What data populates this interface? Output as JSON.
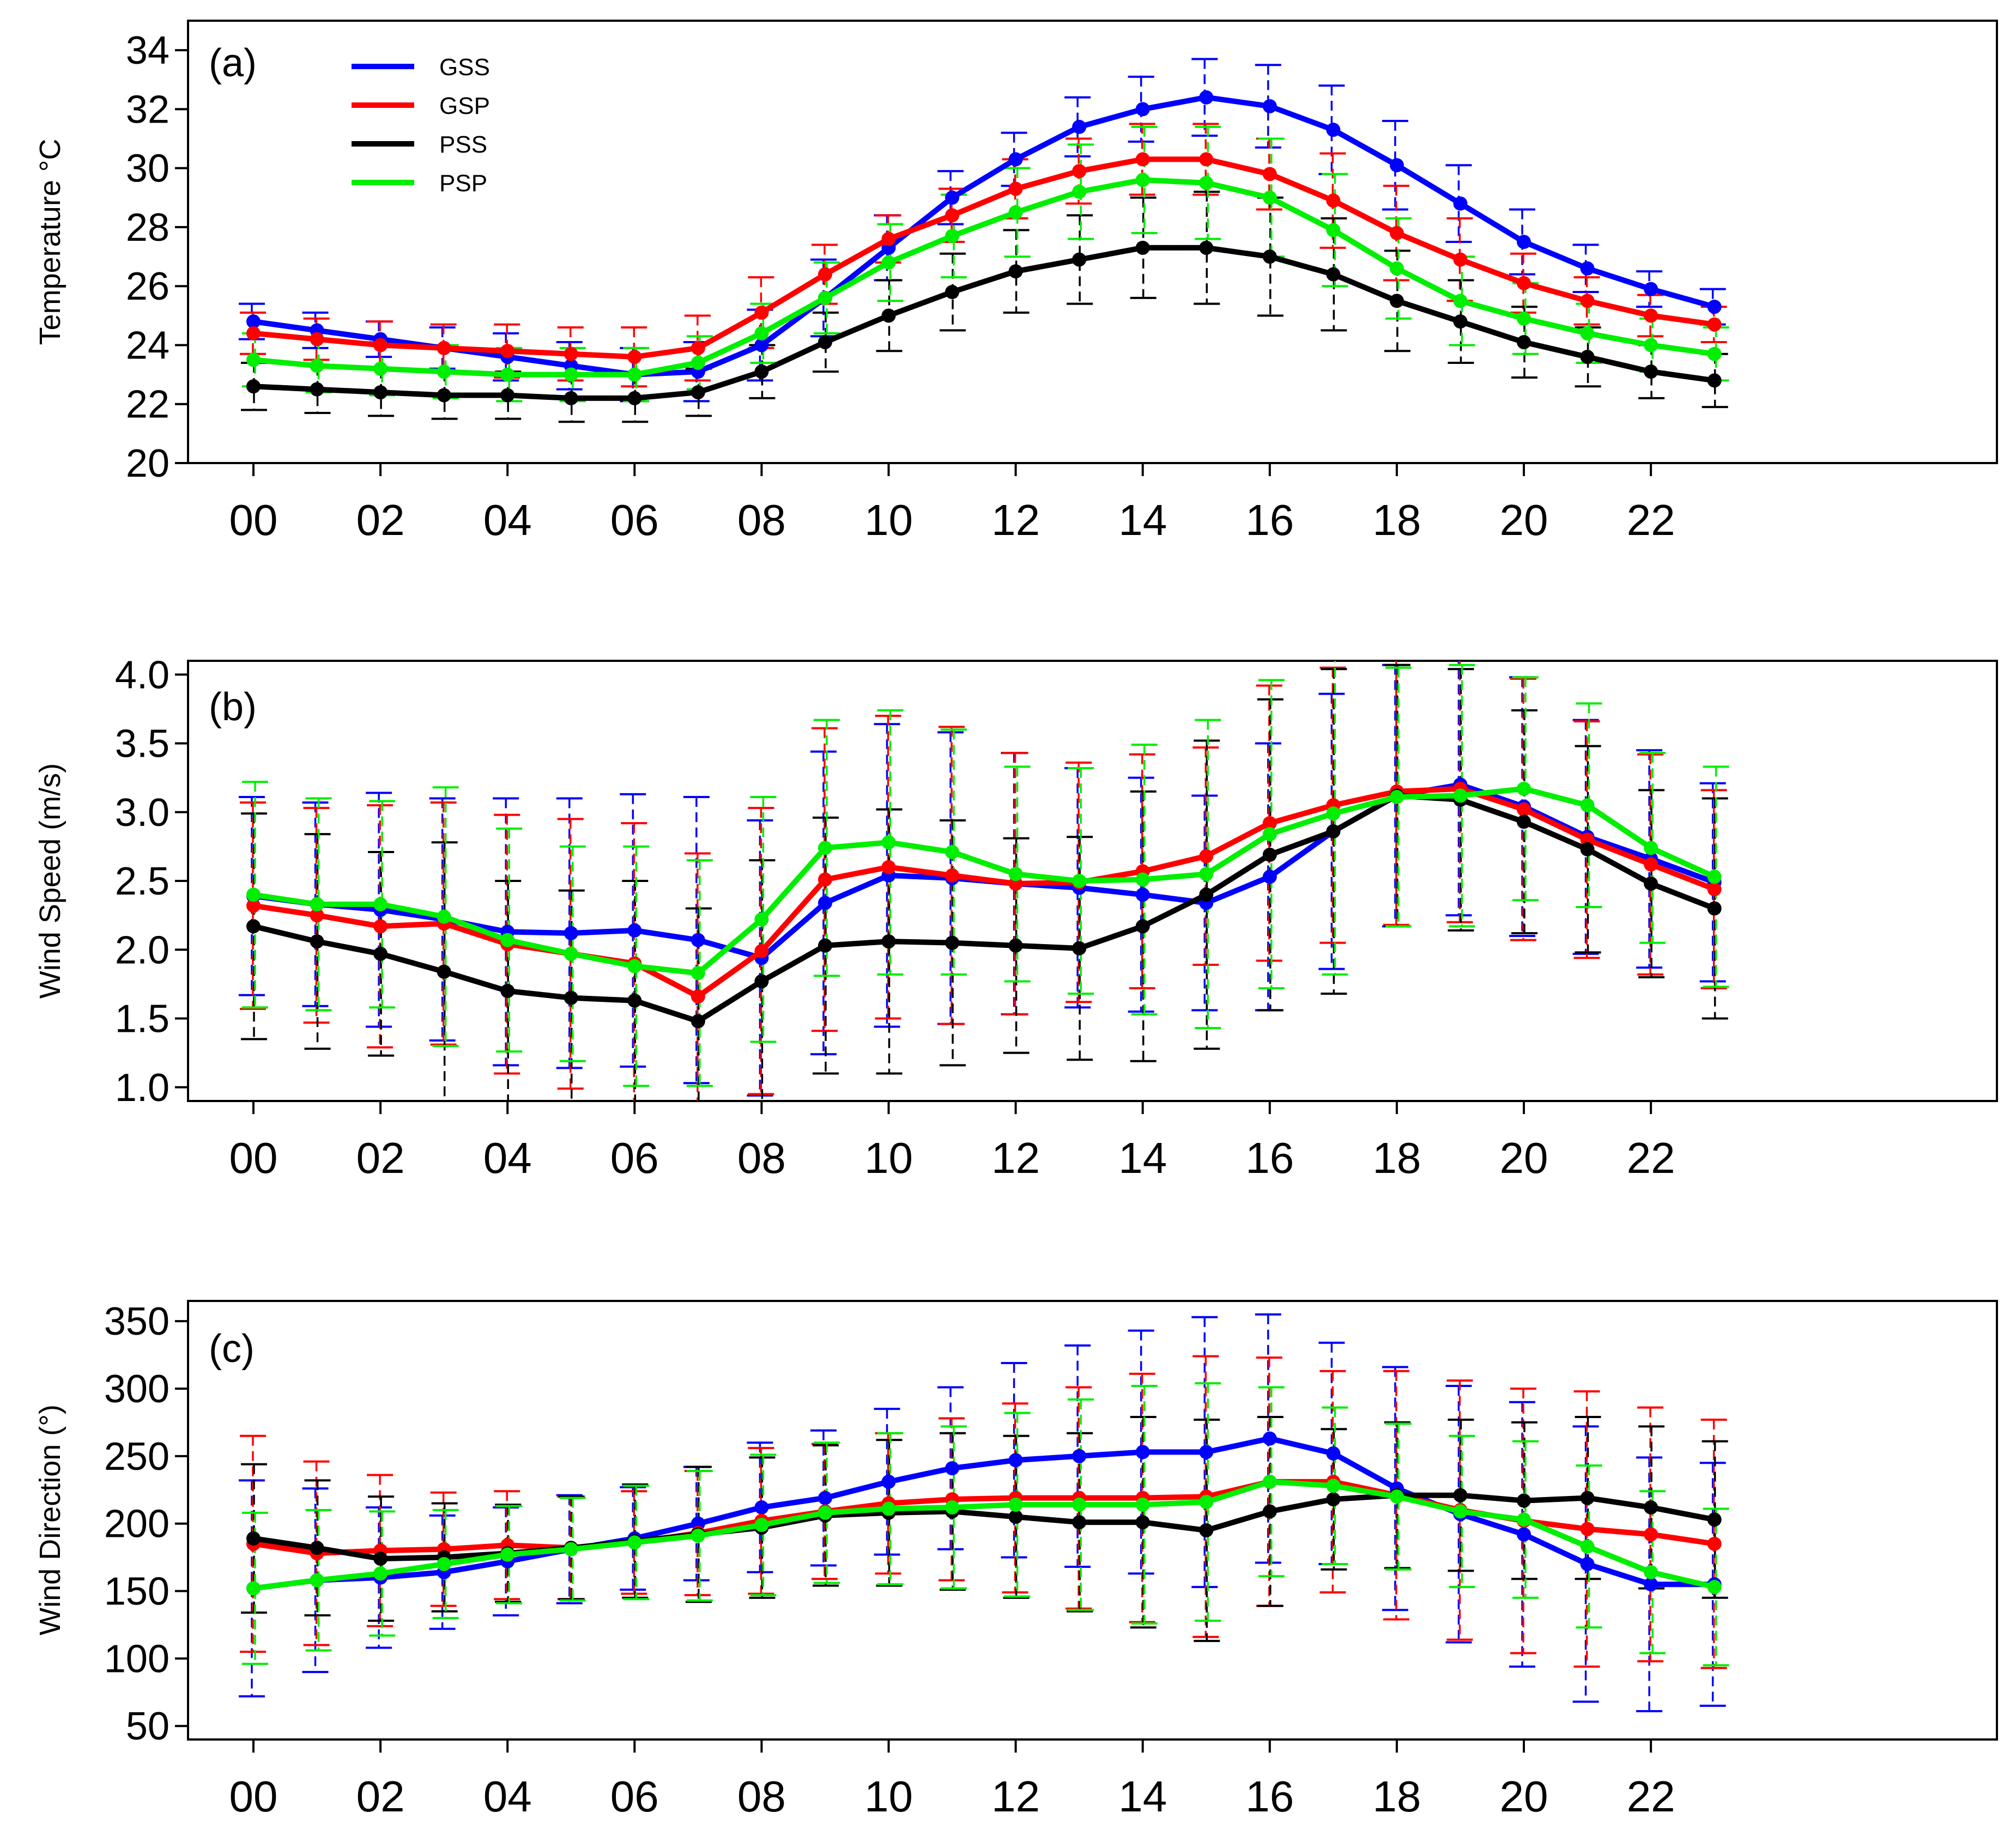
{
  "colors": {
    "GSS": "#0000ff",
    "GSP": "#ff0000",
    "PSS": "#000000",
    "PSP": "#00ee00"
  },
  "legend": [
    {
      "label": "GSS",
      "color": "#0000ff"
    },
    {
      "label": "GSP",
      "color": "#ff0000"
    },
    {
      "label": "PSS",
      "color": "#000000"
    },
    {
      "label": "PSP",
      "color": "#00ee00"
    }
  ],
  "chart_data": [
    {
      "type": "line",
      "panel_label": "(a)",
      "title": "",
      "xlabel": "",
      "ylabel": "Temperature °C",
      "ylim": [
        20,
        35
      ],
      "yticks": [
        20,
        22,
        24,
        26,
        28,
        30,
        32,
        34
      ],
      "ytick_labels": [
        "20",
        "22",
        "24",
        "26",
        "28",
        "30",
        "32",
        "34"
      ],
      "x": [
        0,
        1,
        2,
        3,
        4,
        5,
        6,
        7,
        8,
        9,
        10,
        11,
        12,
        13,
        14,
        15,
        16,
        17,
        18,
        19,
        20,
        21,
        22,
        23
      ],
      "xticks": [
        0,
        2,
        4,
        6,
        8,
        10,
        12,
        14,
        16,
        18,
        20,
        22
      ],
      "xtick_labels": [
        "00",
        "02",
        "04",
        "06",
        "08",
        "10",
        "12",
        "14",
        "16",
        "18",
        "20",
        "22"
      ],
      "legend_position": "top-left",
      "series": [
        {
          "name": "GSS",
          "values": [
            24.8,
            24.5,
            24.2,
            23.9,
            23.6,
            23.3,
            23.0,
            23.1,
            24.0,
            25.6,
            27.3,
            29.0,
            30.3,
            31.4,
            32.0,
            32.4,
            32.1,
            31.3,
            30.1,
            28.8,
            27.5,
            26.6,
            25.9,
            25.3
          ],
          "err": [
            0.6,
            0.6,
            0.6,
            0.7,
            0.8,
            0.8,
            0.9,
            1.0,
            1.2,
            1.3,
            1.1,
            0.9,
            0.9,
            1.0,
            1.1,
            1.3,
            1.4,
            1.5,
            1.5,
            1.3,
            1.1,
            0.8,
            0.6,
            0.6
          ]
        },
        {
          "name": "GSP",
          "values": [
            24.4,
            24.2,
            24.0,
            23.9,
            23.8,
            23.7,
            23.6,
            23.9,
            25.1,
            26.4,
            27.6,
            28.4,
            29.3,
            29.9,
            30.3,
            30.3,
            29.8,
            28.9,
            27.8,
            26.9,
            26.1,
            25.5,
            25.0,
            24.7
          ],
          "err": [
            0.7,
            0.7,
            0.8,
            0.8,
            0.9,
            0.9,
            1.0,
            1.1,
            1.2,
            1.0,
            0.8,
            0.9,
            1.0,
            1.1,
            1.2,
            1.2,
            1.2,
            1.6,
            1.6,
            1.4,
            1.0,
            0.8,
            0.7,
            0.6
          ]
        },
        {
          "name": "PSS",
          "values": [
            22.6,
            22.5,
            22.4,
            22.3,
            22.3,
            22.2,
            22.2,
            22.4,
            23.1,
            24.1,
            25.0,
            25.8,
            26.5,
            26.9,
            27.3,
            27.3,
            27.0,
            26.4,
            25.5,
            24.8,
            24.1,
            23.6,
            23.1,
            22.8
          ],
          "err": [
            0.8,
            0.8,
            0.8,
            0.8,
            0.8,
            0.8,
            0.8,
            0.8,
            0.9,
            1.0,
            1.2,
            1.3,
            1.4,
            1.5,
            1.7,
            1.9,
            2.0,
            1.9,
            1.7,
            1.4,
            1.2,
            1.0,
            0.9,
            0.9
          ]
        },
        {
          "name": "PSP",
          "values": [
            23.5,
            23.3,
            23.2,
            23.1,
            23.0,
            23.0,
            23.0,
            23.4,
            24.4,
            25.6,
            26.8,
            27.7,
            28.5,
            29.2,
            29.6,
            29.5,
            29.0,
            27.9,
            26.6,
            25.5,
            24.9,
            24.4,
            24.0,
            23.7
          ],
          "err": [
            0.9,
            0.9,
            0.9,
            0.9,
            0.9,
            0.9,
            0.9,
            0.9,
            1.0,
            1.2,
            1.3,
            1.4,
            1.5,
            1.6,
            1.8,
            1.9,
            2.0,
            1.9,
            1.7,
            1.5,
            1.2,
            1.0,
            0.9,
            0.9
          ]
        }
      ]
    },
    {
      "type": "line",
      "panel_label": "(b)",
      "title": "",
      "xlabel": "",
      "ylabel": "Wind Speed (m/s)",
      "ylim": [
        0.9,
        4.1
      ],
      "yticks": [
        1.0,
        1.5,
        2.0,
        2.5,
        3.0,
        3.5,
        4.0
      ],
      "ytick_labels": [
        "1.0",
        "1.5",
        "2.0",
        "2.5",
        "3.0",
        "3.5",
        "4.0"
      ],
      "x": [
        0,
        1,
        2,
        3,
        4,
        5,
        6,
        7,
        8,
        9,
        10,
        11,
        12,
        13,
        14,
        15,
        16,
        17,
        18,
        19,
        20,
        21,
        22,
        23
      ],
      "xticks": [
        0,
        2,
        4,
        6,
        8,
        10,
        12,
        14,
        16,
        18,
        20,
        22
      ],
      "xtick_labels": [
        "00",
        "02",
        "04",
        "06",
        "08",
        "10",
        "12",
        "14",
        "16",
        "18",
        "20",
        "22"
      ],
      "series": [
        {
          "name": "GSS",
          "values": [
            2.39,
            2.33,
            2.29,
            2.22,
            2.13,
            2.12,
            2.14,
            2.07,
            1.94,
            2.34,
            2.54,
            2.52,
            2.48,
            2.45,
            2.4,
            2.34,
            2.53,
            2.86,
            3.12,
            3.2,
            3.04,
            2.82,
            2.66,
            2.49
          ],
          "err": [
            0.72,
            0.74,
            0.85,
            0.88,
            0.97,
            0.98,
            0.99,
            1.04,
            1.0,
            1.1,
            1.1,
            1.06,
            0.95,
            0.87,
            0.85,
            0.78,
            0.97,
            1.0,
            0.95,
            0.95,
            0.94,
            0.85,
            0.79,
            0.72
          ]
        },
        {
          "name": "GSP",
          "values": [
            2.32,
            2.25,
            2.17,
            2.19,
            2.04,
            1.97,
            1.9,
            1.66,
            1.99,
            2.51,
            2.6,
            2.54,
            2.48,
            2.49,
            2.57,
            2.68,
            2.92,
            3.05,
            3.15,
            3.17,
            3.02,
            2.8,
            2.62,
            2.44
          ],
          "err": [
            0.75,
            0.78,
            0.88,
            0.88,
            0.94,
            0.98,
            1.02,
            1.04,
            1.04,
            1.1,
            1.1,
            1.08,
            0.95,
            0.87,
            0.85,
            0.79,
            1.0,
            1.0,
            0.97,
            0.97,
            0.95,
            0.86,
            0.8,
            0.72
          ]
        },
        {
          "name": "PSS",
          "values": [
            2.17,
            2.06,
            1.97,
            1.84,
            1.7,
            1.65,
            1.63,
            1.48,
            1.77,
            2.03,
            2.06,
            2.05,
            2.03,
            2.01,
            2.17,
            2.4,
            2.69,
            2.86,
            3.12,
            3.09,
            2.93,
            2.73,
            2.48,
            2.3
          ],
          "err": [
            0.82,
            0.78,
            0.74,
            0.94,
            0.8,
            0.78,
            0.87,
            0.82,
            0.88,
            0.93,
            0.96,
            0.89,
            0.78,
            0.81,
            0.98,
            1.12,
            1.13,
            1.18,
            0.95,
            0.95,
            0.81,
            0.75,
            0.68,
            0.8
          ]
        },
        {
          "name": "PSP",
          "values": [
            2.4,
            2.33,
            2.33,
            2.24,
            2.07,
            1.97,
            1.88,
            1.83,
            2.22,
            2.74,
            2.78,
            2.71,
            2.55,
            2.5,
            2.51,
            2.55,
            2.84,
            2.99,
            3.11,
            3.12,
            3.17,
            3.05,
            2.74,
            2.53
          ],
          "err": [
            0.82,
            0.77,
            0.75,
            0.94,
            0.81,
            0.78,
            0.87,
            0.82,
            0.89,
            0.93,
            0.96,
            0.89,
            0.78,
            0.82,
            0.98,
            1.12,
            1.12,
            1.17,
            0.94,
            0.95,
            0.81,
            0.74,
            0.69,
            0.8
          ]
        }
      ]
    },
    {
      "type": "line",
      "panel_label": "(c)",
      "title": "",
      "xlabel": "",
      "ylabel": "Wind Direction (°)",
      "ylim": [
        40,
        365
      ],
      "yticks": [
        50,
        100,
        150,
        200,
        250,
        300,
        350
      ],
      "ytick_labels": [
        "50",
        "100",
        "150",
        "200",
        "250",
        "300",
        "350"
      ],
      "x": [
        0,
        1,
        2,
        3,
        4,
        5,
        6,
        7,
        8,
        9,
        10,
        11,
        12,
        13,
        14,
        15,
        16,
        17,
        18,
        19,
        20,
        21,
        22,
        23
      ],
      "xticks": [
        0,
        2,
        4,
        6,
        8,
        10,
        12,
        14,
        16,
        18,
        20,
        22
      ],
      "xtick_labels": [
        "00",
        "02",
        "04",
        "06",
        "08",
        "10",
        "12",
        "14",
        "16",
        "18",
        "20",
        "22"
      ],
      "series": [
        {
          "name": "GSS",
          "values": [
            152,
            158,
            160,
            164,
            172,
            181,
            189,
            200,
            212,
            219,
            231,
            241,
            247,
            250,
            253,
            253,
            263,
            252,
            226,
            207,
            192,
            170,
            155,
            155
          ],
          "err": [
            80,
            68,
            52,
            42,
            40,
            40,
            38,
            42,
            48,
            50,
            54,
            60,
            72,
            82,
            90,
            100,
            92,
            82,
            90,
            95,
            98,
            102,
            94,
            90
          ]
        },
        {
          "name": "GSP",
          "values": [
            185,
            178,
            180,
            181,
            184,
            182,
            186,
            193,
            202,
            209,
            215,
            218,
            219,
            219,
            219,
            220,
            231,
            231,
            221,
            210,
            202,
            196,
            192,
            185
          ],
          "err": [
            80,
            68,
            56,
            42,
            40,
            38,
            38,
            46,
            54,
            50,
            52,
            60,
            70,
            82,
            92,
            104,
            92,
            82,
            92,
            96,
            98,
            102,
            94,
            92
          ]
        },
        {
          "name": "PSS",
          "values": [
            189,
            182,
            174,
            175,
            178,
            182,
            187,
            192,
            197,
            206,
            208,
            209,
            205,
            201,
            201,
            195,
            209,
            218,
            221,
            221,
            217,
            219,
            212,
            203
          ],
          "err": [
            55,
            50,
            46,
            40,
            36,
            38,
            42,
            50,
            52,
            52,
            54,
            58,
            60,
            66,
            78,
            82,
            70,
            52,
            54,
            56,
            58,
            60,
            60,
            58
          ]
        },
        {
          "name": "PSP",
          "values": [
            152,
            158,
            163,
            170,
            177,
            181,
            186,
            191,
            199,
            208,
            211,
            212,
            214,
            214,
            214,
            216,
            231,
            228,
            220,
            209,
            203,
            183,
            164,
            153
          ],
          "err": [
            56,
            52,
            46,
            40,
            36,
            38,
            42,
            48,
            52,
            52,
            56,
            60,
            68,
            78,
            88,
            88,
            70,
            58,
            54,
            56,
            58,
            60,
            60,
            58
          ]
        }
      ]
    }
  ]
}
